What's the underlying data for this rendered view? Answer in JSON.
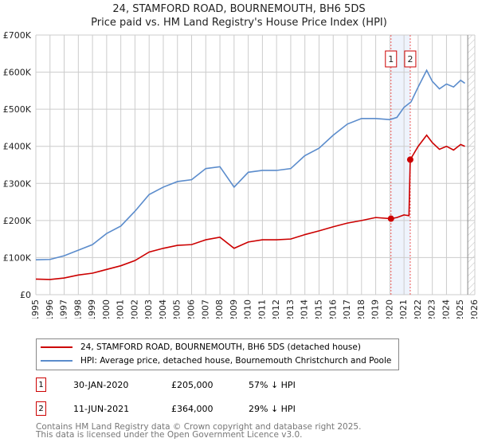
{
  "title": "24, STAMFORD ROAD, BOURNEMOUTH, BH6 5DS",
  "subtitle": "Price paid vs. HM Land Registry's House Price Index (HPI)",
  "chart_data": {
    "type": "line",
    "xlim": [
      1995,
      2026
    ],
    "ylim": [
      0,
      700000
    ],
    "yticks": [
      0,
      100000,
      200000,
      300000,
      400000,
      500000,
      600000,
      700000
    ],
    "ytick_labels": [
      "£0",
      "£100K",
      "£200K",
      "£300K",
      "£400K",
      "£500K",
      "£600K",
      "£700K"
    ],
    "xticks": [
      1995,
      1996,
      1997,
      1998,
      1999,
      2000,
      2001,
      2002,
      2003,
      2004,
      2005,
      2006,
      2007,
      2008,
      2009,
      2010,
      2011,
      2012,
      2013,
      2014,
      2015,
      2016,
      2017,
      2018,
      2019,
      2020,
      2021,
      2022,
      2023,
      2024,
      2025,
      2026
    ],
    "grid": true,
    "series": [
      {
        "name": "24, STAMFORD ROAD, BOURNEMOUTH, BH6 5DS (detached house)",
        "color": "#cc0000",
        "x": [
          1995,
          1996,
          1997,
          1998,
          1999,
          2000,
          2001,
          2002,
          2003,
          2004,
          2005,
          2006,
          2007,
          2008,
          2009,
          2010,
          2011,
          2012,
          2013,
          2014,
          2015,
          2016,
          2017,
          2018,
          2019,
          2020.08,
          2020.5,
          2021,
          2021.35,
          2021.44,
          2022,
          2022.6,
          2023,
          2023.5,
          2024,
          2024.5,
          2025,
          2025.3
        ],
        "y": [
          42000,
          41000,
          45000,
          53000,
          58000,
          68000,
          78000,
          92000,
          115000,
          125000,
          133000,
          135000,
          148000,
          155000,
          125000,
          142000,
          148000,
          148000,
          150000,
          162000,
          172000,
          183000,
          193000,
          200000,
          208000,
          205000,
          208000,
          215000,
          213000,
          364000,
          400000,
          430000,
          410000,
          392000,
          400000,
          390000,
          405000,
          400000
        ]
      },
      {
        "name": "HPI: Average price, detached house, Bournemouth Christchurch and Poole",
        "color": "#5b8ccc",
        "x": [
          1995,
          1996,
          1997,
          1998,
          1999,
          2000,
          2001,
          2002,
          2003,
          2004,
          2005,
          2006,
          2007,
          2008,
          2009,
          2010,
          2011,
          2012,
          2013,
          2014,
          2015,
          2016,
          2017,
          2018,
          2019,
          2020,
          2020.5,
          2021,
          2021.5,
          2022,
          2022.6,
          2023,
          2023.5,
          2024,
          2024.5,
          2025,
          2025.3
        ],
        "y": [
          94000,
          95000,
          105000,
          120000,
          135000,
          165000,
          185000,
          225000,
          270000,
          290000,
          305000,
          310000,
          340000,
          345000,
          290000,
          330000,
          335000,
          335000,
          340000,
          375000,
          395000,
          430000,
          460000,
          475000,
          475000,
          472000,
          478000,
          505000,
          520000,
          560000,
          605000,
          575000,
          555000,
          568000,
          560000,
          578000,
          570000
        ]
      }
    ],
    "sales": [
      {
        "label": "1",
        "x": 2020.08,
        "date": "30-JAN-2020",
        "price": "£205,000",
        "value": 205000,
        "hpi": "57% ↓ HPI"
      },
      {
        "label": "2",
        "x": 2021.44,
        "date": "11-JUN-2021",
        "price": "£364,000",
        "value": 364000,
        "hpi": "29% ↓ HPI"
      }
    ],
    "hatched_from": 2025.5
  },
  "footer": [
    "Contains HM Land Registry data © Crown copyright and database right 2025.",
    "This data is licensed under the Open Government Licence v3.0."
  ]
}
